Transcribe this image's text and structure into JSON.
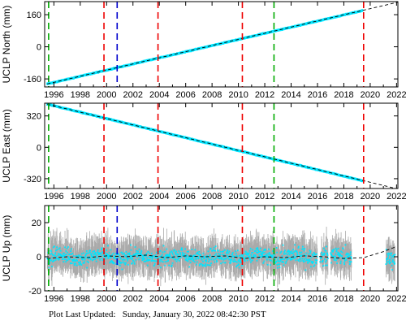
{
  "chart_data": [
    {
      "type": "scatter",
      "ylabel": "UCLP North (mm)",
      "xlim": [
        1995.3,
        2022.1
      ],
      "ylim": [
        -200,
        225
      ],
      "yticks": [
        -160,
        0,
        160
      ],
      "xticks": [
        1996,
        1998,
        2000,
        2002,
        2004,
        2006,
        2008,
        2010,
        2012,
        2014,
        2016,
        2018,
        2020,
        2022
      ],
      "grid": false,
      "series": [
        {
          "color": "#00e5ff",
          "x": [
            1995.5,
            2019.4
          ],
          "y": [
            -185,
            180
          ],
          "error_color": "#aaaaaa"
        },
        {
          "style": "dashed",
          "color": "#000000",
          "x": [
            1995.5,
            2022.1
          ],
          "y": [
            -185,
            222
          ]
        }
      ],
      "vlines": [
        {
          "x": 1995.6,
          "color": "#00aa00"
        },
        {
          "x": 1999.8,
          "color": "#ee0000"
        },
        {
          "x": 2000.8,
          "color": "#0000cc"
        },
        {
          "x": 2003.9,
          "color": "#ee0000"
        },
        {
          "x": 2010.3,
          "color": "#ee0000"
        },
        {
          "x": 2012.7,
          "color": "#00aa00"
        },
        {
          "x": 2019.5,
          "color": "#ee0000"
        }
      ]
    },
    {
      "type": "scatter",
      "ylabel": "UCLP East (mm)",
      "xlim": [
        1995.3,
        2022.1
      ],
      "ylim": [
        -420,
        450
      ],
      "yticks": [
        -320,
        0,
        320
      ],
      "xticks": [
        1996,
        1998,
        2000,
        2002,
        2004,
        2006,
        2008,
        2010,
        2012,
        2014,
        2016,
        2018,
        2020,
        2022
      ],
      "grid": false,
      "series": [
        {
          "color": "#00e5ff",
          "x": [
            1995.5,
            2019.4
          ],
          "y": [
            440,
            -340
          ],
          "error_color": "#aaaaaa"
        },
        {
          "style": "dashed",
          "color": "#000000",
          "x": [
            1995.5,
            2022.1
          ],
          "y": [
            440,
            -425
          ]
        }
      ],
      "vlines": [
        {
          "x": 1995.6,
          "color": "#00aa00"
        },
        {
          "x": 1999.8,
          "color": "#ee0000"
        },
        {
          "x": 2003.9,
          "color": "#ee0000"
        },
        {
          "x": 2010.3,
          "color": "#ee0000"
        },
        {
          "x": 2012.7,
          "color": "#00aa00"
        },
        {
          "x": 2019.5,
          "color": "#ee0000"
        }
      ]
    },
    {
      "type": "scatter",
      "ylabel": "UCLP Up (mm)",
      "xlim": [
        1995.3,
        2022.1
      ],
      "ylim": [
        -20,
        30
      ],
      "yticks": [
        -20,
        0,
        20
      ],
      "xticks": [
        1996,
        1998,
        2000,
        2002,
        2004,
        2006,
        2008,
        2010,
        2012,
        2014,
        2016,
        2018,
        2020,
        2022
      ],
      "grid": false,
      "series": [
        {
          "color": "#00e5ff",
          "error_color": "#aaaaaa",
          "segments": [
            [
              1995.5,
              2016.0
            ],
            [
              2016.2,
              2016.8
            ],
            [
              2017.0,
              2018.6
            ],
            [
              2021.2,
              2021.9
            ]
          ],
          "spread": 5,
          "error_spread": 9
        },
        {
          "style": "dashed",
          "color": "#000000",
          "x": [
            1995.5,
            1997.0,
            1998.5,
            2000.0,
            2001.5,
            2003.0,
            2004.5,
            2006.0,
            2007.5,
            2009.0,
            2010.5,
            2012.0,
            2013.5,
            2015.0,
            2016.5,
            2018.0,
            2019.5,
            2021.0,
            2022.0
          ],
          "y": [
            -1,
            0,
            -0.5,
            0.5,
            0,
            1,
            -0.5,
            0.5,
            0,
            0.5,
            -1,
            0,
            -0.5,
            0.5,
            0,
            -1,
            -0.5,
            3,
            6
          ]
        }
      ],
      "vlines": [
        {
          "x": 1995.6,
          "color": "#00aa00"
        },
        {
          "x": 1999.8,
          "color": "#ee0000"
        },
        {
          "x": 2000.8,
          "color": "#0000cc"
        },
        {
          "x": 2003.9,
          "color": "#ee0000"
        },
        {
          "x": 2010.3,
          "color": "#ee0000"
        },
        {
          "x": 2012.7,
          "color": "#00aa00"
        },
        {
          "x": 2019.5,
          "color": "#ee0000"
        }
      ]
    }
  ],
  "footer": {
    "label": "Plot Last Updated:",
    "timestamp": "Sunday, January 30, 2022 08:42:30 PST"
  }
}
